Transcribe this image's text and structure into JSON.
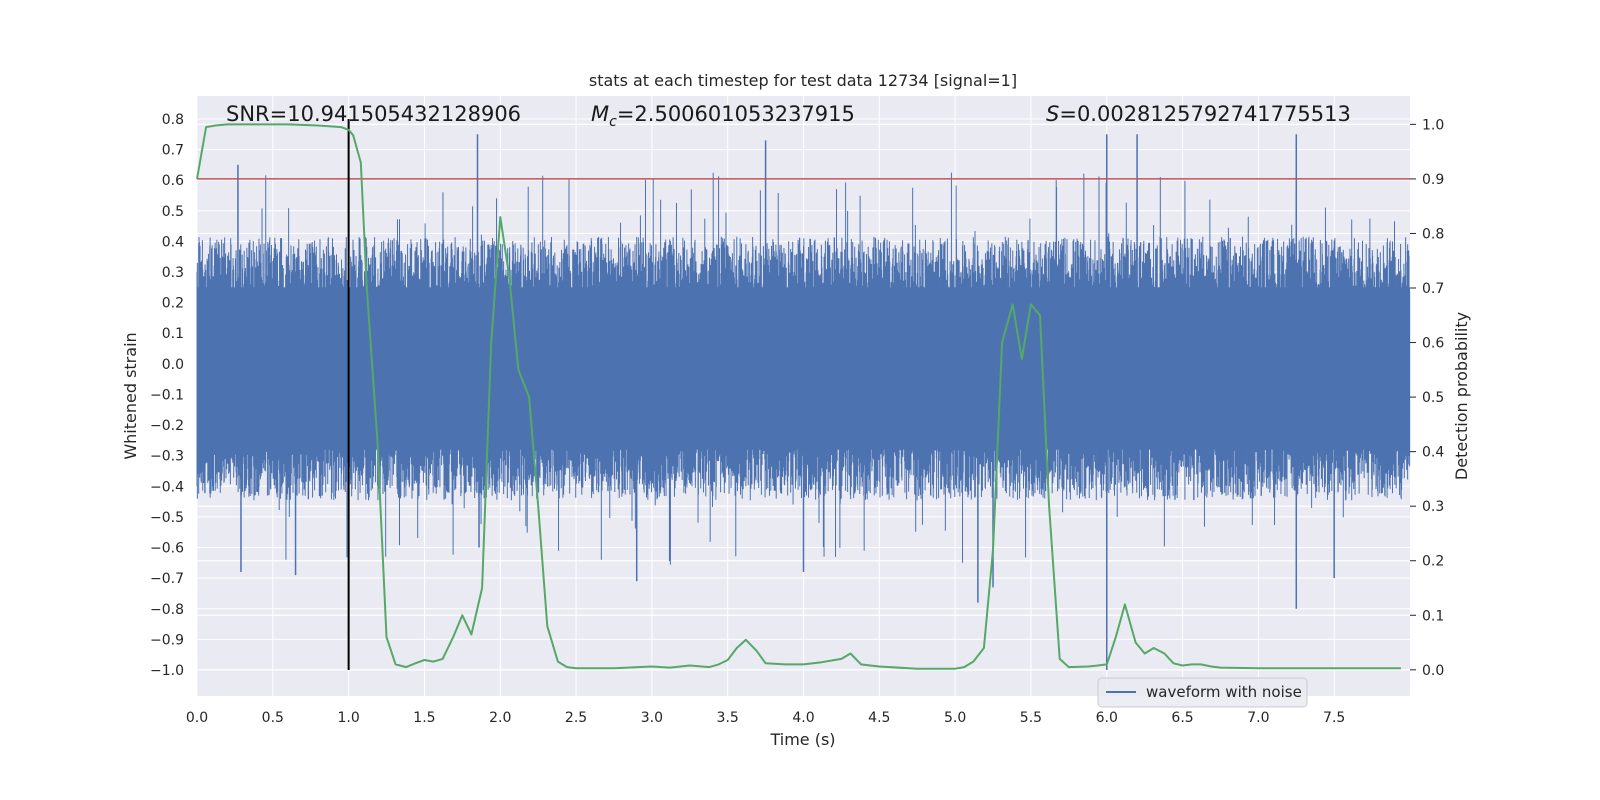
{
  "chart_data": {
    "type": "line",
    "title": "stats at each timestep for test data 12734 [signal=1]",
    "xlabel": "Time (s)",
    "ylabel_left": "Whitened strain",
    "ylabel_right": "Detection probability",
    "xlim": [
      0.0,
      8.0
    ],
    "ylim_left": [
      -1.085,
      0.875
    ],
    "ylim_right": [
      -0.048,
      1.052
    ],
    "x_ticks": [
      "0.0",
      "0.5",
      "1.0",
      "1.5",
      "2.0",
      "2.5",
      "3.0",
      "3.5",
      "4.0",
      "4.5",
      "5.0",
      "5.5",
      "6.0",
      "6.5",
      "7.0",
      "7.5"
    ],
    "y_left_ticks": [
      "0.8",
      "0.7",
      "0.6",
      "0.5",
      "0.4",
      "0.3",
      "0.2",
      "0.1",
      "0.0",
      "−0.1",
      "−0.2",
      "−0.3",
      "−0.4",
      "−0.5",
      "−0.6",
      "−0.7",
      "−0.8",
      "−0.9",
      "−1.0"
    ],
    "y_right_ticks": [
      "1.0",
      "0.9",
      "0.8",
      "0.7",
      "0.6",
      "0.5",
      "0.4",
      "0.3",
      "0.2",
      "0.1",
      "0.0"
    ],
    "annotations": {
      "snr": "SNR=10.941505432128906",
      "mc_symbol": "M",
      "mc_subscript": "c",
      "mc_value": "=2.500601053237915",
      "s_symbol": "S",
      "s_value": "=0.0028125792741775513"
    },
    "legend": [
      "waveform with noise"
    ],
    "colors": {
      "waveform": "#4c72b0",
      "probability": "#55a868",
      "threshold": "#c44e52",
      "marker": "#000000",
      "axes_bg": "#eaeaf2",
      "grid": "#ffffff"
    },
    "threshold_probability": 0.9,
    "marker_time": 1.0,
    "marker_strain_range": [
      -1.0,
      0.8
    ],
    "waveform_noise": {
      "typical_min": -0.45,
      "typical_max": 0.42,
      "peaks": [
        {
          "t": 0.27,
          "v": 0.65
        },
        {
          "t": 0.29,
          "v": -0.68
        },
        {
          "t": 0.65,
          "v": -0.69
        },
        {
          "t": 1.85,
          "v": 0.75
        },
        {
          "t": 1.86,
          "v": -0.6
        },
        {
          "t": 2.9,
          "v": -0.71
        },
        {
          "t": 3.75,
          "v": 0.73
        },
        {
          "t": 4.0,
          "v": -0.68
        },
        {
          "t": 5.15,
          "v": -0.78
        },
        {
          "t": 5.25,
          "v": -0.73
        },
        {
          "t": 6.0,
          "v": -1.0
        },
        {
          "t": 6.0,
          "v": 0.75
        },
        {
          "t": 6.2,
          "v": 0.75
        },
        {
          "t": 7.25,
          "v": 0.75
        },
        {
          "t": 7.25,
          "v": -0.8
        },
        {
          "t": 7.5,
          "v": -0.7
        }
      ]
    },
    "detection_probability": {
      "x": [
        0.0,
        0.06,
        0.12,
        0.2,
        0.4,
        0.6,
        0.8,
        0.95,
        1.0,
        1.03,
        1.08,
        1.12,
        1.19,
        1.25,
        1.31,
        1.38,
        1.44,
        1.5,
        1.56,
        1.62,
        1.69,
        1.75,
        1.81,
        1.88,
        1.94,
        2.0,
        2.06,
        2.12,
        2.19,
        2.25,
        2.31,
        2.38,
        2.44,
        2.5,
        2.75,
        3.0,
        3.12,
        3.25,
        3.38,
        3.44,
        3.5,
        3.56,
        3.62,
        3.69,
        3.75,
        3.88,
        4.0,
        4.12,
        4.25,
        4.31,
        4.38,
        4.44,
        4.5,
        4.75,
        5.0,
        5.06,
        5.12,
        5.19,
        5.25,
        5.31,
        5.38,
        5.44,
        5.5,
        5.56,
        5.62,
        5.69,
        5.75,
        5.88,
        5.94,
        6.0,
        6.06,
        6.12,
        6.19,
        6.25,
        6.31,
        6.38,
        6.44,
        6.5,
        6.56,
        6.62,
        6.69,
        6.75,
        7.0,
        7.5,
        7.94
      ],
      "y": [
        0.9,
        0.995,
        0.998,
        1.0,
        1.0,
        1.0,
        0.998,
        0.995,
        0.99,
        0.98,
        0.93,
        0.7,
        0.42,
        0.06,
        0.01,
        0.005,
        0.012,
        0.018,
        0.015,
        0.02,
        0.06,
        0.1,
        0.065,
        0.15,
        0.6,
        0.83,
        0.72,
        0.55,
        0.5,
        0.3,
        0.08,
        0.015,
        0.005,
        0.003,
        0.003,
        0.006,
        0.004,
        0.008,
        0.005,
        0.01,
        0.018,
        0.04,
        0.055,
        0.035,
        0.012,
        0.01,
        0.01,
        0.014,
        0.02,
        0.03,
        0.01,
        0.008,
        0.006,
        0.002,
        0.002,
        0.005,
        0.015,
        0.04,
        0.22,
        0.6,
        0.67,
        0.57,
        0.67,
        0.65,
        0.3,
        0.02,
        0.005,
        0.006,
        0.008,
        0.01,
        0.06,
        0.12,
        0.05,
        0.03,
        0.04,
        0.03,
        0.012,
        0.008,
        0.01,
        0.01,
        0.006,
        0.004,
        0.003,
        0.003,
        0.003
      ]
    }
  }
}
